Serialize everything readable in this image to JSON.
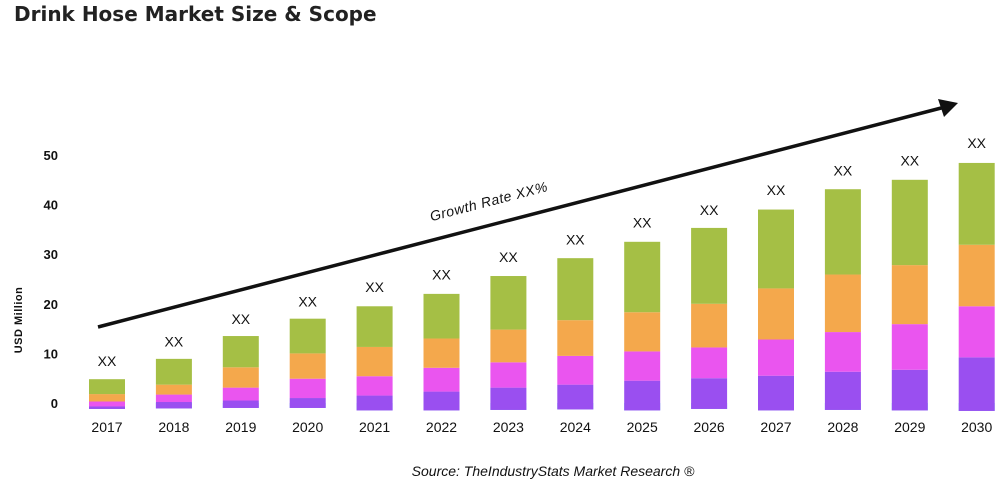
{
  "title": "Drink Hose Market Size & Scope",
  "source": "Source: TheIndustryStats Market Research ®",
  "annotation": "Growth Rate XX%",
  "chart_data": {
    "type": "bar",
    "stacked": true,
    "title": "Drink Hose Market Size & Scope",
    "xlabel": "",
    "ylabel": "USD Million",
    "ylim": [
      0,
      50
    ],
    "yticks": [
      0,
      10,
      20,
      30,
      40,
      50
    ],
    "grid": false,
    "categories": [
      "2017",
      "2018",
      "2019",
      "2020",
      "2021",
      "2022",
      "2023",
      "2024",
      "2025",
      "2026",
      "2027",
      "2028",
      "2029",
      "2030"
    ],
    "totals": [
      6,
      10,
      14.5,
      18,
      21,
      23.5,
      27,
      30.5,
      34,
      36.5,
      40.5,
      44.5,
      46.5,
      50
    ],
    "data_labels": [
      "XX",
      "XX",
      "XX",
      "XX",
      "XX",
      "XX",
      "XX",
      "XX",
      "XX",
      "XX",
      "XX",
      "XX",
      "XX",
      "XX"
    ],
    "colors": [
      "#5cdcf8",
      "#9a4ff0",
      "#ea55ef",
      "#f4a84c",
      "#a5bf45"
    ],
    "series": [
      {
        "values": [
          -1.2,
          -1.1,
          -1.0,
          -1.0,
          -1.5,
          -1.5,
          -1.4,
          -1.3,
          -1.5,
          -1.2,
          -1.5,
          -1.4,
          -1.5,
          -1.6
        ]
      },
      {
        "values": [
          0.5,
          1.3,
          1.5,
          2.0,
          3.0,
          3.8,
          4.5,
          5.0,
          6.0,
          6.2,
          7.0,
          7.7,
          8.2,
          10.8
        ]
      },
      {
        "values": [
          1.0,
          1.5,
          2.6,
          3.9,
          3.9,
          4.8,
          5.1,
          5.8,
          5.9,
          6.2,
          7.3,
          8.0,
          9.2,
          10.3
        ]
      },
      {
        "values": [
          1.5,
          2.0,
          4.1,
          5.1,
          5.9,
          5.9,
          6.6,
          7.2,
          7.9,
          8.8,
          10.3,
          11.6,
          11.9,
          12.4
        ]
      },
      {
        "values": [
          3.0,
          5.2,
          6.3,
          7.0,
          8.2,
          9.0,
          10.8,
          12.5,
          14.2,
          15.3,
          15.9,
          17.2,
          17.2,
          16.5
        ]
      }
    ]
  }
}
